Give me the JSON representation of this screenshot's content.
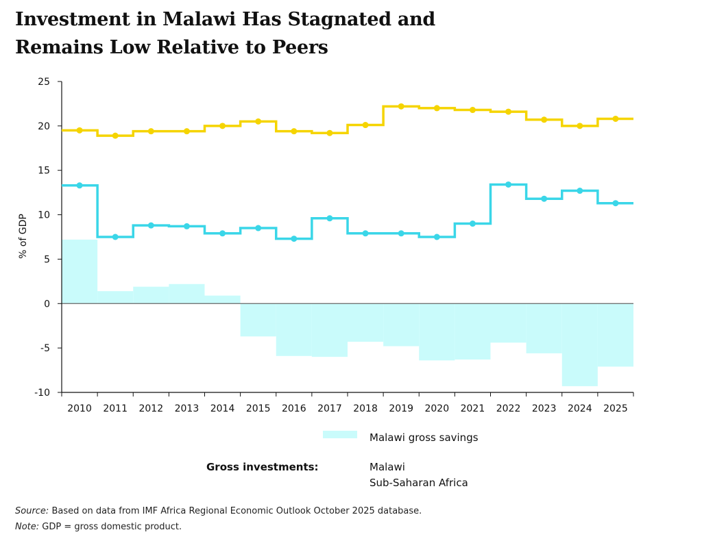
{
  "title_line1": "Investment in Malawi Has Stagnated and",
  "title_line2": "Remains Low Relative to Peers",
  "legend": {
    "gross_investments_label": "Gross investments:",
    "savings_label": "Malawi gross savings",
    "malawi_label": "Malawi",
    "ssa_label": "Sub-Saharan Africa"
  },
  "footnotes": {
    "source_label": "Source:",
    "source_text": " Based on data from IMF Africa Regional Economic Outlook October 2025 database.",
    "note_label": "Note:",
    "note_text": " GDP = gross domestic product."
  },
  "colors": {
    "ssa": "#f5d400",
    "malawi": "#3ad6e8",
    "savings_fill": "#c9fbfb",
    "axis": "#111111",
    "zero_line": "#666666"
  },
  "chart_data": {
    "type": "step-line with bar area",
    "categories": [
      "2010",
      "2011",
      "2012",
      "2013",
      "2014",
      "2015",
      "2016",
      "2017",
      "2018",
      "2019",
      "2020",
      "2021",
      "2022",
      "2023",
      "2024",
      "2025"
    ],
    "ylabel": "% of GDP",
    "ylim": [
      -10,
      25
    ],
    "yticks": [
      -10,
      -5,
      0,
      5,
      10,
      15,
      20,
      25
    ],
    "series": [
      {
        "name": "Sub-Saharan Africa",
        "values": [
          19.5,
          18.9,
          19.4,
          19.4,
          20.0,
          20.5,
          19.4,
          19.2,
          20.1,
          22.2,
          22.0,
          21.8,
          21.6,
          20.7,
          20.0,
          20.8
        ]
      },
      {
        "name": "Malawi",
        "values": [
          13.3,
          7.5,
          8.8,
          8.7,
          7.9,
          8.5,
          7.3,
          9.6,
          7.9,
          7.9,
          7.5,
          9.0,
          13.4,
          11.8,
          12.7,
          11.3
        ]
      },
      {
        "name": "Malawi gross savings",
        "values": [
          7.2,
          1.4,
          1.9,
          2.2,
          0.9,
          -3.7,
          -5.9,
          -6.0,
          -4.3,
          -4.8,
          -6.4,
          -6.3,
          -4.4,
          -5.6,
          -9.3,
          -7.1
        ]
      }
    ]
  }
}
